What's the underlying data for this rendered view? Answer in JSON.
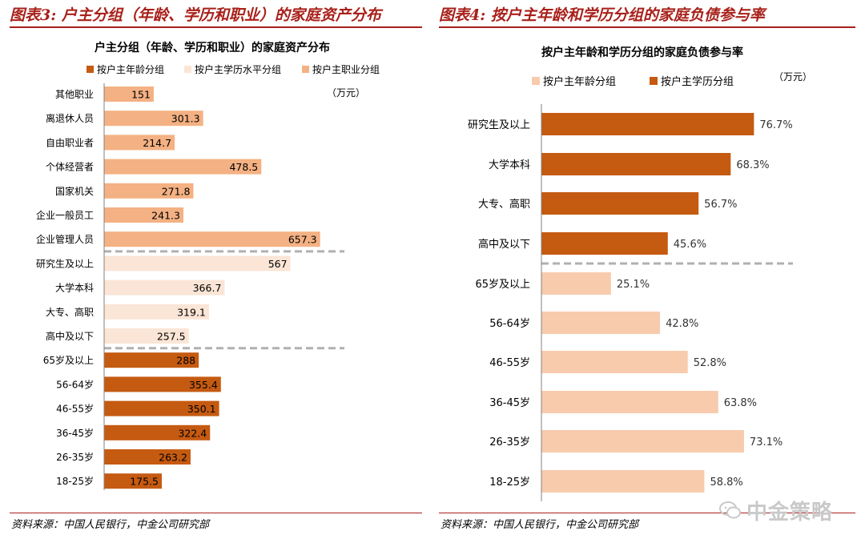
{
  "figure_left": {
    "caption": "图表3: 户主分组（年龄、学历和职业）的家庭资产分布",
    "source": "资料来源：中国人民银行，中金公司研究部"
  },
  "figure_right": {
    "caption": "图表4: 按户主年龄和学历分组的家庭负债参与率",
    "source": "资料来源：中国人民银行，中金公司研究部"
  },
  "watermark": "中金策略",
  "colors": {
    "brand": "#a8201a",
    "dark": "#c55a11",
    "mid": "#f4b183",
    "light": "#fbe5d6",
    "peach": "#f8cbad",
    "divider": "#b0b0b0"
  },
  "chart_data": [
    {
      "type": "bar",
      "orientation": "horizontal",
      "title": "户主分组（年龄、学历和职业）的家庭资产分布",
      "unit": "（万元）",
      "legend": [
        {
          "name": "按户主年龄分组",
          "color": "#c55a11"
        },
        {
          "name": "按户主学历水平分组",
          "color": "#fbe5d6"
        },
        {
          "name": "按户主职业分组",
          "color": "#f4b183"
        }
      ],
      "legend_position": "top",
      "grid": false,
      "groups": [
        {
          "name": "按户主职业分组",
          "categories": [
            "其他职业",
            "离退休人员",
            "自由职业者",
            "个体经营者",
            "国家机关",
            "企业一般员工",
            "企业管理人员"
          ],
          "values": [
            151,
            301.3,
            214.7,
            478.5,
            271.8,
            241.3,
            657.3
          ],
          "labels": [
            "151",
            "301.3",
            "214.7",
            "478.5",
            "271.8",
            "241.3",
            "657.3"
          ]
        },
        {
          "name": "按户主学历水平分组",
          "categories": [
            "研究生及以上",
            "大学本科",
            "大专、高职",
            "高中及以下"
          ],
          "values": [
            567,
            366.7,
            319.1,
            257.5
          ],
          "labels": [
            "567",
            "366.7",
            "319.1",
            "257.5"
          ]
        },
        {
          "name": "按户主年龄分组",
          "categories": [
            "65岁及以上",
            "56-64岁",
            "46-55岁",
            "36-45岁",
            "26-35岁",
            "18-25岁"
          ],
          "values": [
            288,
            355.4,
            350.1,
            322.4,
            263.2,
            175.5
          ],
          "labels": [
            "288",
            "355.4",
            "350.1",
            "322.4",
            "263.2",
            "175.5"
          ]
        }
      ],
      "xlim": [
        0,
        700
      ]
    },
    {
      "type": "bar",
      "orientation": "horizontal",
      "title": "按户主年龄和学历分组的家庭负债参与率",
      "unit": "（万元）",
      "legend": [
        {
          "name": "按户主年龄分组",
          "color": "#f8cbad"
        },
        {
          "name": "按户主学历分组",
          "color": "#c55a11"
        }
      ],
      "legend_position": "top",
      "grid": false,
      "groups": [
        {
          "name": "按户主学历分组",
          "categories": [
            "研究生及以上",
            "大学本科",
            "大专、高职",
            "高中及以下"
          ],
          "values": [
            76.7,
            68.3,
            56.7,
            45.6
          ],
          "labels": [
            "76.7%",
            "68.3%",
            "56.7%",
            "45.6%"
          ]
        },
        {
          "name": "按户主年龄分组",
          "categories": [
            "65岁及以上",
            "56-64岁",
            "46-55岁",
            "36-45岁",
            "26-35岁",
            "18-25岁"
          ],
          "values": [
            25.1,
            42.8,
            52.8,
            63.8,
            73.1,
            58.8
          ],
          "labels": [
            "25.1%",
            "42.8%",
            "52.8%",
            "63.8%",
            "73.1%",
            "58.8%"
          ]
        }
      ],
      "xlim": [
        0,
        90
      ]
    }
  ]
}
